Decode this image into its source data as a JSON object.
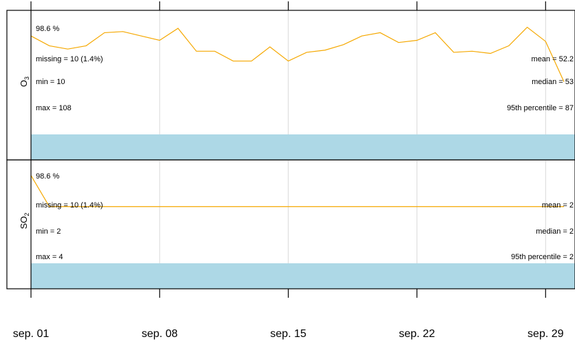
{
  "chart_data": {
    "type": "line",
    "xlim": [
      1,
      30.6
    ],
    "xticks": [
      {
        "value": 1,
        "label": "sep. 01"
      },
      {
        "value": 8,
        "label": "sep. 08"
      },
      {
        "value": 15,
        "label": "sep. 15"
      },
      {
        "value": 22,
        "label": "sep. 22"
      },
      {
        "value": 29,
        "label": "sep. 29"
      }
    ],
    "grid": true,
    "panels": [
      {
        "label": "O",
        "label_sub": "3",
        "capture": "98.6 %",
        "stats_left": [
          "missing = 10 (1.4%)",
          "min = 10",
          "max = 108"
        ],
        "stats_right": [
          "mean = 52.2",
          "median = 53",
          "95th percentile = 87"
        ],
        "x": [
          1,
          2,
          3,
          4,
          5,
          6,
          7,
          8,
          9,
          10,
          11,
          12,
          13,
          14,
          15,
          16,
          17,
          18,
          19,
          20,
          21,
          22,
          23,
          24,
          25,
          26,
          27,
          28,
          29,
          30
        ],
        "values": [
          66,
          57,
          54,
          57,
          69,
          70,
          66,
          62,
          73,
          52,
          52,
          43,
          43,
          56,
          43,
          51,
          53,
          58,
          66,
          69,
          60,
          62,
          69,
          51,
          52,
          50,
          57,
          74,
          61,
          24
        ],
        "ylim": [
          20,
          80
        ],
        "color": "#f5a800",
        "capture_color": "#1e8b1e",
        "band_color": "#add8e6"
      },
      {
        "label": "SO",
        "label_sub": "2",
        "capture": "98.6 %",
        "stats_left": [
          "missing = 10 (1.4%)",
          "min = 2",
          "max = 4"
        ],
        "stats_right": [
          "mean = 2",
          "median = 2",
          "95th percentile = 2"
        ],
        "x": [
          1,
          2,
          3,
          4,
          5,
          6,
          7,
          8,
          9,
          10,
          11,
          12,
          13,
          14,
          15,
          16,
          17,
          18,
          19,
          20,
          21,
          22,
          23,
          24,
          25,
          26,
          27,
          28,
          29,
          30
        ],
        "values": [
          4,
          2,
          2,
          2,
          2,
          2,
          2,
          2,
          2,
          2,
          2,
          2,
          2,
          2,
          2,
          2,
          2,
          2,
          2,
          2,
          2,
          2,
          2,
          2,
          2,
          2,
          2,
          2,
          2,
          2
        ],
        "ylim": [
          0,
          4.2
        ],
        "color": "#f5a800",
        "capture_color": "#1e8b1e",
        "band_color": "#add8e6"
      }
    ]
  }
}
